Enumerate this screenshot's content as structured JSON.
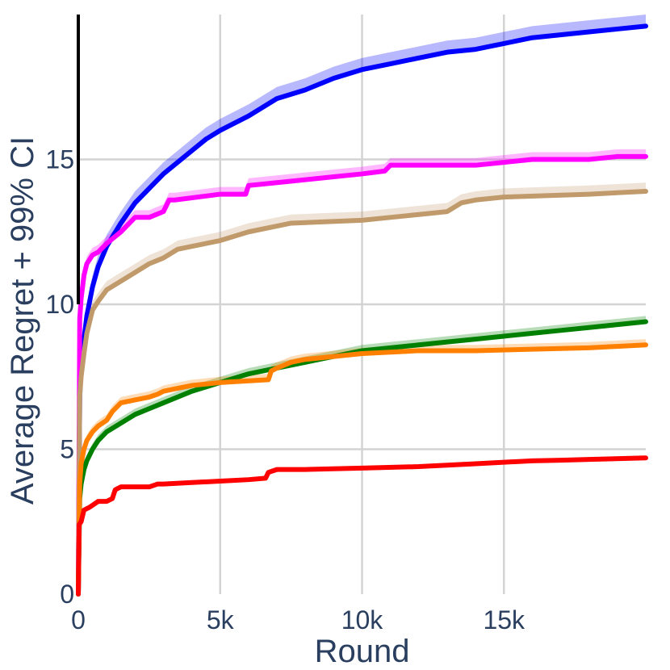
{
  "chart_data": {
    "type": "line",
    "xlabel": "Round",
    "ylabel": "Average Regret + 99% CI",
    "xlim": [
      0,
      20000
    ],
    "ylim": [
      0,
      20
    ],
    "grid": true,
    "legend": "none",
    "x_ticks": [
      {
        "value": 0,
        "label": "0"
      },
      {
        "value": 5000,
        "label": "5k"
      },
      {
        "value": 10000,
        "label": "10k"
      },
      {
        "value": 15000,
        "label": "15k"
      }
    ],
    "y_ticks": [
      {
        "value": 0,
        "label": "0"
      },
      {
        "value": 5,
        "label": "5"
      },
      {
        "value": 10,
        "label": "10"
      },
      {
        "value": 15,
        "label": "15"
      }
    ],
    "series": [
      {
        "color": "#0000ff",
        "ci": 0.4,
        "x": [
          0,
          50,
          100,
          200,
          300,
          500,
          700,
          1000,
          1500,
          2000,
          2500,
          3000,
          3500,
          4000,
          4500,
          5000,
          6000,
          7000,
          8000,
          9000,
          10000,
          11000,
          12000,
          13000,
          14000,
          15000,
          16000,
          17000,
          18000,
          19000,
          20000
        ],
        "y": [
          0,
          6.8,
          7.8,
          8.8,
          9.6,
          10.6,
          11.3,
          12.0,
          12.8,
          13.5,
          14.0,
          14.5,
          14.9,
          15.3,
          15.7,
          16.0,
          16.5,
          17.1,
          17.4,
          17.8,
          18.1,
          18.3,
          18.5,
          18.7,
          18.8,
          19.0,
          19.2,
          19.3,
          19.4,
          19.5,
          19.6
        ]
      },
      {
        "color": "#ff00ff",
        "ci": 0.25,
        "x": [
          0,
          50,
          100,
          200,
          300,
          500,
          700,
          1000,
          1500,
          1800,
          2000,
          2500,
          3000,
          3200,
          3400,
          5000,
          5900,
          6000,
          7000,
          9000,
          10000,
          10800,
          11000,
          12000,
          14000,
          15000,
          16000,
          17000,
          18000,
          19000,
          19500,
          20000
        ],
        "y": [
          0,
          9.5,
          10.2,
          11.0,
          11.4,
          11.7,
          11.8,
          12.1,
          12.5,
          12.8,
          13.0,
          13.0,
          13.2,
          13.6,
          13.6,
          13.8,
          13.8,
          14.1,
          14.2,
          14.4,
          14.5,
          14.6,
          14.8,
          14.8,
          14.8,
          14.9,
          15.0,
          15.0,
          15.0,
          15.1,
          15.1,
          15.1
        ]
      },
      {
        "color": "#c19a6b",
        "ci": 0.3,
        "x": [
          0,
          50,
          100,
          200,
          300,
          500,
          700,
          1000,
          1500,
          2000,
          2500,
          3000,
          3500,
          4000,
          5000,
          6000,
          7000,
          7500,
          10000,
          11000,
          12000,
          13000,
          13500,
          14000,
          15000,
          18000,
          20000
        ],
        "y": [
          0,
          6.8,
          7.5,
          8.3,
          9.0,
          9.8,
          10.1,
          10.5,
          10.8,
          11.1,
          11.4,
          11.6,
          11.9,
          12.0,
          12.2,
          12.5,
          12.7,
          12.8,
          12.9,
          13.0,
          13.1,
          13.2,
          13.5,
          13.6,
          13.7,
          13.8,
          13.9
        ]
      },
      {
        "color": "#008000",
        "ci": 0.2,
        "x": [
          0,
          50,
          100,
          200,
          300,
          500,
          700,
          1000,
          1500,
          2000,
          2500,
          3000,
          4000,
          5000,
          6000,
          7000,
          8000,
          9000,
          10000,
          11000,
          12000,
          13000,
          14000,
          15000,
          16000,
          17000,
          18000,
          19000,
          20000
        ],
        "y": [
          0,
          3.3,
          3.8,
          4.3,
          4.6,
          5.0,
          5.3,
          5.6,
          5.9,
          6.2,
          6.4,
          6.6,
          7.0,
          7.3,
          7.6,
          7.8,
          8.0,
          8.2,
          8.4,
          8.5,
          8.6,
          8.7,
          8.8,
          8.9,
          9.0,
          9.1,
          9.2,
          9.3,
          9.4
        ]
      },
      {
        "color": "#ff8000",
        "ci": 0.2,
        "x": [
          0,
          50,
          100,
          200,
          300,
          500,
          700,
          1000,
          1200,
          1500,
          2000,
          2500,
          2800,
          3000,
          3500,
          4000,
          5000,
          6700,
          6800,
          7000,
          7500,
          8000,
          9000,
          10000,
          11000,
          12000,
          14000,
          16000,
          18000,
          20000
        ],
        "y": [
          0,
          3.8,
          4.5,
          5.0,
          5.3,
          5.6,
          5.8,
          6.0,
          6.3,
          6.6,
          6.7,
          6.8,
          6.9,
          7.0,
          7.1,
          7.2,
          7.3,
          7.4,
          7.7,
          7.8,
          8.0,
          8.1,
          8.2,
          8.3,
          8.35,
          8.4,
          8.4,
          8.45,
          8.5,
          8.6
        ]
      },
      {
        "color": "#ff0000",
        "ci": 0.05,
        "x": [
          0,
          30,
          100,
          200,
          400,
          700,
          1000,
          1200,
          1300,
          1500,
          2000,
          2500,
          2800,
          3000,
          4000,
          5000,
          6000,
          6600,
          6700,
          7000,
          8000,
          10000,
          12000,
          13000,
          14000,
          15000,
          16000,
          17000,
          18000,
          20000
        ],
        "y": [
          0,
          2.4,
          2.5,
          2.9,
          3.0,
          3.2,
          3.2,
          3.3,
          3.6,
          3.7,
          3.7,
          3.7,
          3.8,
          3.8,
          3.85,
          3.9,
          3.95,
          4.0,
          4.2,
          4.3,
          4.3,
          4.35,
          4.4,
          4.45,
          4.5,
          4.55,
          4.6,
          4.62,
          4.65,
          4.7
        ]
      }
    ]
  }
}
